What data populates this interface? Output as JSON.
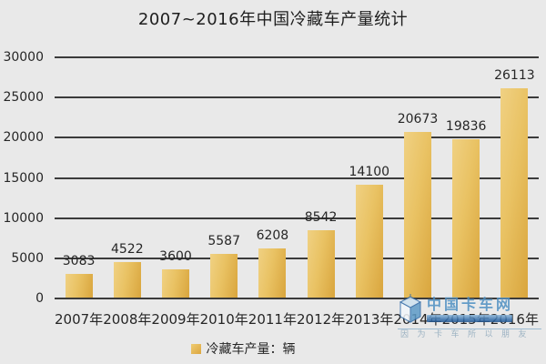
{
  "title": "2007~2016年中国冷藏车产量统计",
  "chart_data": {
    "type": "bar",
    "title": "2007~2016年中国冷藏车产量统计",
    "categories": [
      "2007年",
      "2008年",
      "2009年",
      "2010年",
      "2011年",
      "2012年",
      "2013年",
      "2014年",
      "2015年",
      "2016年"
    ],
    "values": [
      3083,
      4522,
      3600,
      5587,
      6208,
      8542,
      14100,
      20673,
      19836,
      26113
    ],
    "ylim": [
      0,
      30000
    ],
    "yticks": [
      0,
      5000,
      10000,
      15000,
      20000,
      25000,
      30000
    ],
    "xlabel": "",
    "ylabel": "",
    "grid": true,
    "legend_position": "bottom",
    "legend": "冷藏车产量：辆"
  },
  "legend": {
    "label": "冷藏车产量：辆",
    "swatch_color": "#e6bc55"
  },
  "watermark": {
    "brand": "中国卡车网",
    "tagline": "因为卡车所以朋友"
  },
  "colors": {
    "background": "#e9e9e9",
    "bar_light": "#f0d183",
    "bar_dark": "#d9a53d",
    "gridline": "#3b3b3b",
    "text": "#262626",
    "watermark_blue": "#4d8fc2"
  }
}
